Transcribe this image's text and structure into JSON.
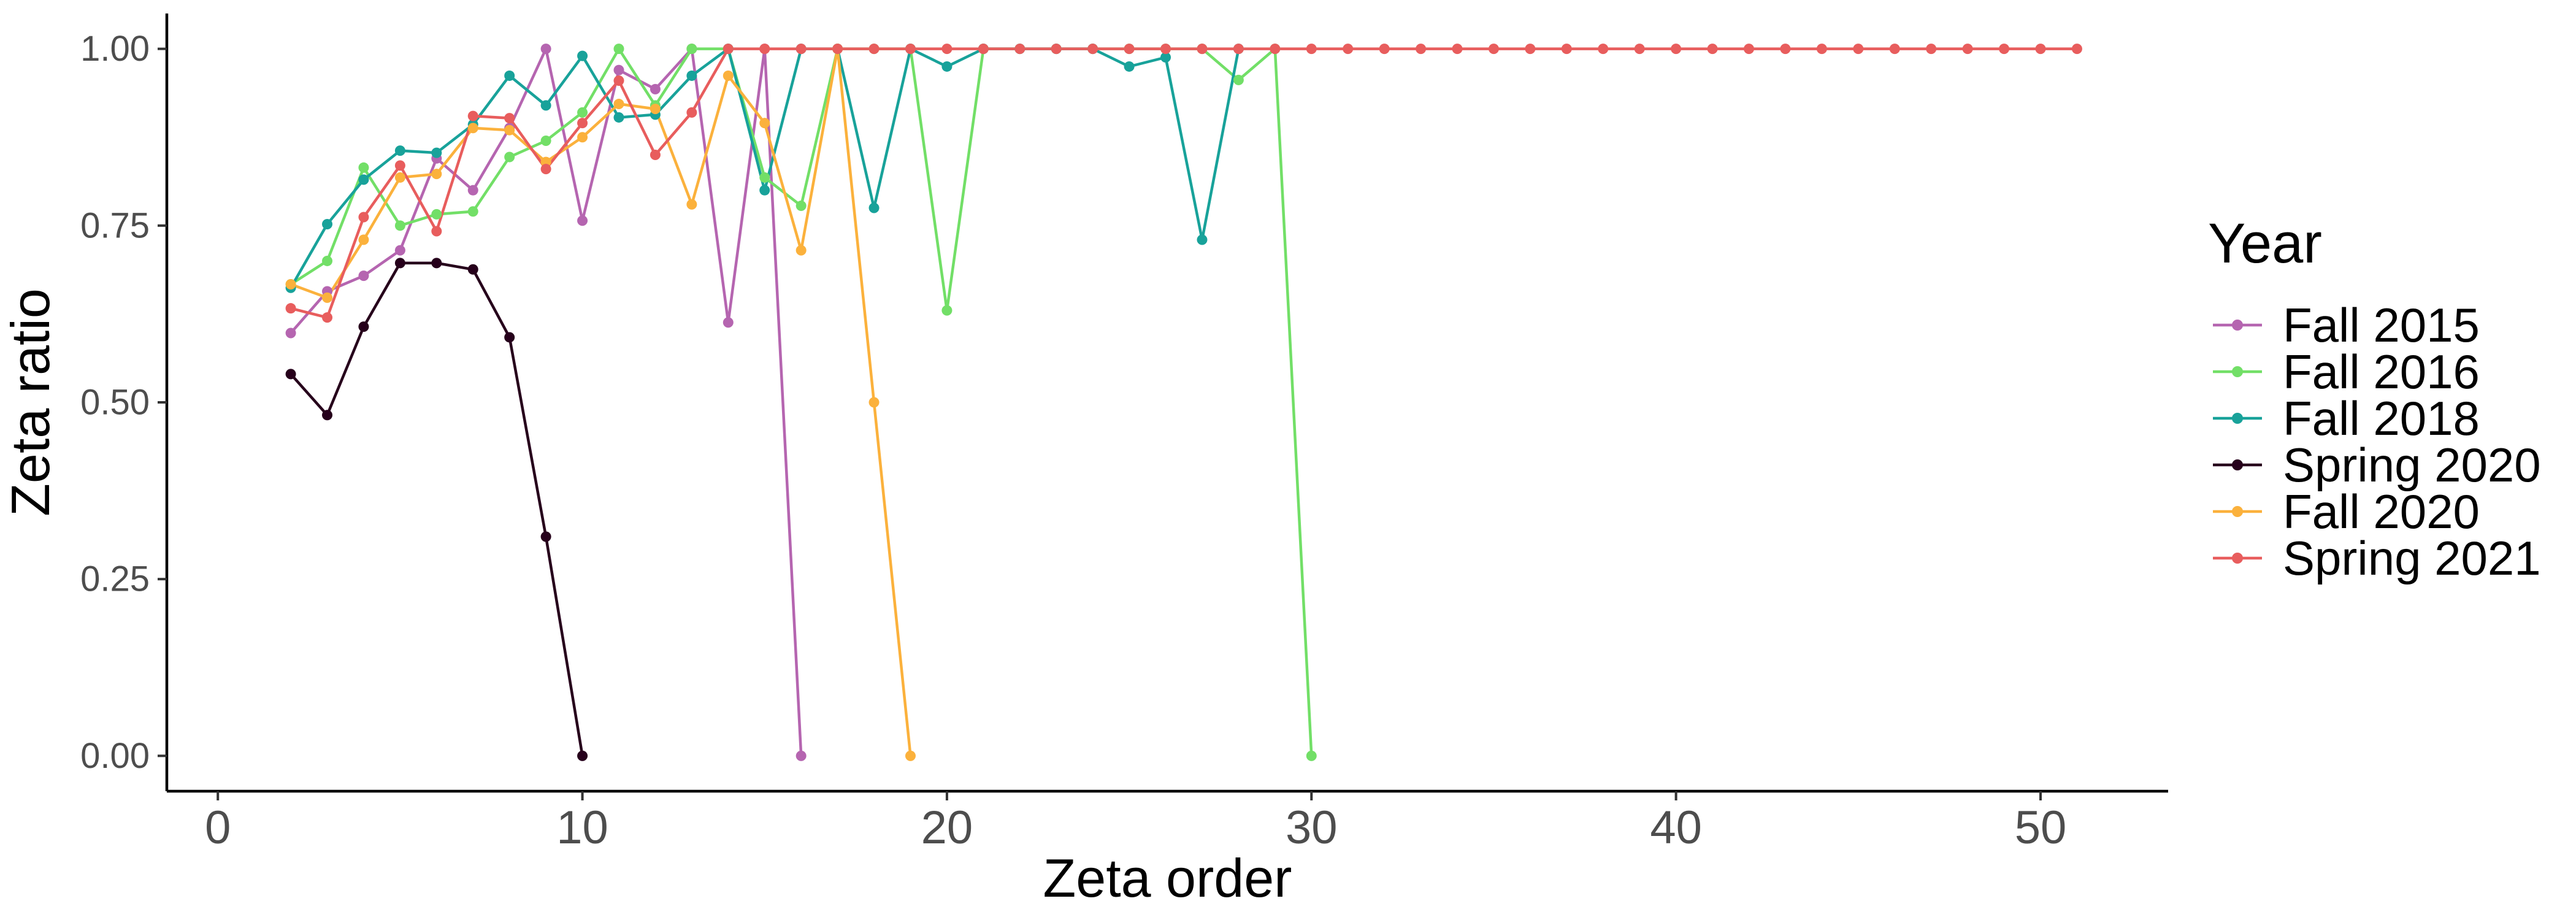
{
  "chart_data": {
    "type": "line",
    "title": "",
    "xlabel": "Zeta order",
    "ylabel": "Zeta ratio",
    "xlim": [
      -1.4,
      53.5
    ],
    "ylim": [
      -0.05,
      1.05
    ],
    "x_ticks": [
      0,
      10,
      20,
      30,
      40,
      50
    ],
    "x_tick_labels": [
      "0",
      "10",
      "20",
      "30",
      "40",
      "50"
    ],
    "y_ticks": [
      0,
      0.25,
      0.5,
      0.75,
      1
    ],
    "y_tick_labels": [
      "0.00",
      "0.25",
      "0.50",
      "0.75",
      "1.00"
    ],
    "grid": false,
    "legend": {
      "title": "Year",
      "position": "right"
    },
    "series": [
      {
        "name": "Fall 2015",
        "color": "#b565b0",
        "x": [
          2,
          3,
          4,
          5,
          6,
          7,
          8,
          9,
          10,
          11,
          12,
          13,
          14,
          15,
          16
        ],
        "y": [
          0.598,
          0.657,
          0.679,
          0.715,
          0.845,
          0.8,
          0.888,
          1.0,
          0.757,
          0.97,
          0.943,
          1.0,
          0.613,
          1.0,
          0.0
        ]
      },
      {
        "name": "Fall 2016",
        "color": "#72df67",
        "x": [
          2,
          3,
          4,
          5,
          6,
          7,
          8,
          9,
          10,
          11,
          12,
          13,
          14,
          15,
          16,
          17,
          18,
          19,
          20,
          21,
          22,
          23,
          24,
          25,
          26,
          27,
          28,
          29,
          30
        ],
        "y": [
          0.667,
          0.7,
          0.832,
          0.75,
          0.766,
          0.77,
          0.847,
          0.87,
          0.91,
          1.0,
          0.92,
          1.0,
          1.0,
          0.818,
          0.778,
          1.0,
          1.0,
          1.0,
          0.63,
          1.0,
          1.0,
          1.0,
          1.0,
          1.0,
          1.0,
          1.0,
          0.956,
          1.0,
          0.0
        ]
      },
      {
        "name": "Fall 2018",
        "color": "#18a29a",
        "x": [
          2,
          3,
          4,
          5,
          6,
          7,
          8,
          9,
          10,
          11,
          12,
          13,
          14,
          15,
          16,
          17,
          18,
          19,
          20,
          21,
          22,
          23,
          24,
          25,
          26,
          27,
          28
        ],
        "y": [
          0.662,
          0.752,
          0.815,
          0.856,
          0.853,
          0.893,
          0.962,
          0.92,
          0.99,
          0.903,
          0.907,
          0.962,
          1.0,
          0.8,
          1.0,
          1.0,
          0.775,
          1.0,
          0.975,
          1.0,
          1.0,
          1.0,
          1.0,
          0.975,
          0.988,
          0.73,
          1.0
        ]
      },
      {
        "name": "Spring 2020",
        "color": "#26001b",
        "x": [
          2,
          3,
          4,
          5,
          6,
          7,
          8,
          9,
          10
        ],
        "y": [
          0.54,
          0.482,
          0.607,
          0.697,
          0.697,
          0.688,
          0.592,
          0.31,
          0.0
        ]
      },
      {
        "name": "Fall 2020",
        "color": "#fbb13c",
        "x": [
          2,
          3,
          4,
          5,
          6,
          7,
          8,
          9,
          10,
          11,
          12,
          13,
          14,
          15,
          16,
          17,
          18,
          19
        ],
        "y": [
          0.667,
          0.648,
          0.73,
          0.818,
          0.823,
          0.888,
          0.885,
          0.84,
          0.875,
          0.922,
          0.915,
          0.78,
          0.962,
          0.895,
          0.715,
          1.0,
          0.5,
          0.0
        ]
      },
      {
        "name": "Spring 2021",
        "color": "#e85d5d",
        "x": [
          2,
          3,
          4,
          5,
          6,
          7,
          8,
          9,
          10,
          11,
          12,
          13,
          14,
          15,
          16,
          17,
          18,
          19,
          20,
          21,
          22,
          23,
          24,
          25,
          26,
          27,
          28,
          29,
          30,
          31,
          32,
          33,
          34,
          35,
          36,
          37,
          38,
          39,
          40,
          41,
          42,
          43,
          44,
          45,
          46,
          47,
          48,
          49,
          50,
          51
        ],
        "y": [
          0.633,
          0.62,
          0.762,
          0.835,
          0.742,
          0.905,
          0.902,
          0.83,
          0.895,
          0.955,
          0.85,
          0.91,
          1.0,
          1.0,
          1.0,
          1.0,
          1.0,
          1.0,
          1.0,
          1.0,
          1.0,
          1.0,
          1.0,
          1.0,
          1.0,
          1.0,
          1.0,
          1.0,
          1.0,
          1.0,
          1.0,
          1.0,
          1.0,
          1.0,
          1.0,
          1.0,
          1.0,
          1.0,
          1.0,
          1.0,
          1.0,
          1.0,
          1.0,
          1.0,
          1.0,
          1.0,
          1.0,
          1.0,
          1.0,
          1.0
        ]
      }
    ]
  }
}
